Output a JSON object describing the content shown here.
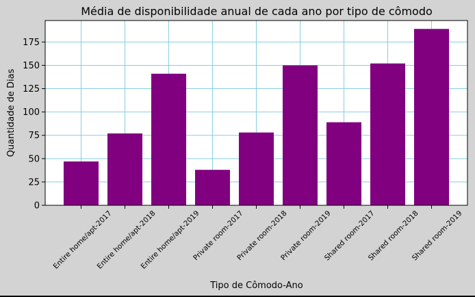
{
  "chart_data": {
    "type": "bar",
    "title": "Média de disponibilidade anual de cada ano por tipo de cômodo",
    "xlabel": "Tipo de Cômodo-Ano",
    "ylabel": "Quantidade de Dias",
    "categories": [
      "Entire home/apt-2017",
      "Entire home/apt-2018",
      "Entire home/apt-2019",
      "Private room-2017",
      "Private room-2018",
      "Private room-2019",
      "Shared room-2017",
      "Shared room-2018",
      "Shared room-2019"
    ],
    "values": [
      47,
      77,
      141,
      38,
      78,
      150,
      89,
      152,
      189
    ],
    "ylim": [
      0,
      198
    ],
    "yticks": [
      0,
      25,
      50,
      75,
      100,
      125,
      150,
      175
    ],
    "grid": true,
    "bar_color": "#800080",
    "grid_color": "#87cedf",
    "background_color": "#d3d3d3",
    "plot_background_color": "#ffffff"
  }
}
